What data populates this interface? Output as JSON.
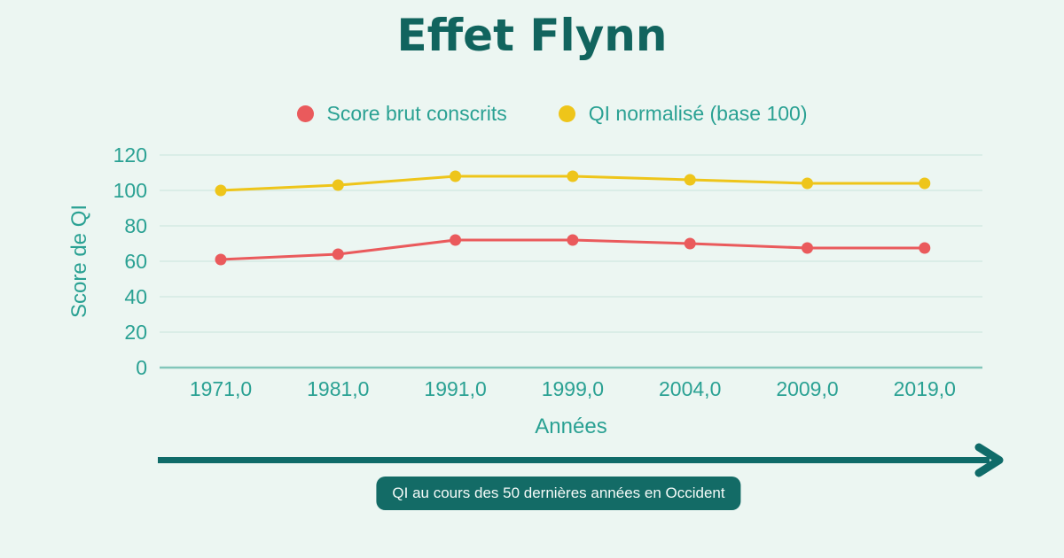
{
  "title": "Effet Flynn",
  "legend": {
    "items": [
      {
        "label": "Score brut conscrits",
        "color": "#ea5a5c"
      },
      {
        "label": "QI normalisé (base 100)",
        "color": "#eec51a"
      }
    ]
  },
  "chart_data": {
    "type": "line",
    "title": "Effet Flynn",
    "categories": [
      "1971,0",
      "1981,0",
      "1991,0",
      "1999,0",
      "2004,0",
      "2009,0",
      "2019,0"
    ],
    "x_values": [
      1971,
      1981,
      1991,
      1999,
      2004,
      2009,
      2019
    ],
    "series": [
      {
        "name": "Score brut conscrits",
        "color": "#ea5a5c",
        "values": [
          61,
          64,
          72,
          72,
          70,
          67.5,
          67.5
        ]
      },
      {
        "name": "QI normalisé (base 100)",
        "color": "#eec51a",
        "values": [
          100,
          103,
          108,
          108,
          106,
          104,
          104
        ]
      }
    ],
    "xlabel": "Années",
    "ylabel": "Score de QI",
    "ylim": [
      0,
      120
    ],
    "yticks": [
      0,
      20,
      40,
      60,
      80,
      100,
      120
    ],
    "grid": true,
    "legend_position": "top"
  },
  "caption_badge": "QI au cours des 50 dernières années en Occident",
  "colors": {
    "background": "#ecf6f2",
    "title": "#11645e",
    "axis_text": "#2aa193",
    "gridline": "#d3eae3",
    "zero_line": "#82c6ba",
    "arrow": "#0f6b69",
    "badge_bg": "#136b66",
    "badge_text": "#f4faf8"
  }
}
